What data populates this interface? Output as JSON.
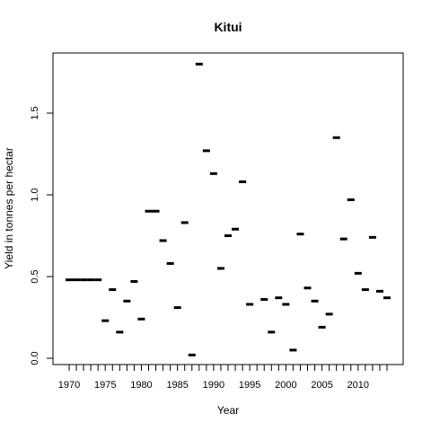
{
  "chart_data": {
    "type": "scatter",
    "title": "Kitui",
    "xlabel": "Year",
    "ylabel": "Yield in tonnes per hectar",
    "xlim": [
      1968.5,
      1015.5
    ],
    "ylim": [
      -0.03,
      1.87
    ],
    "x_ticks": [
      1970,
      1975,
      1980,
      1985,
      1990,
      1995,
      2000,
      2005,
      2010
    ],
    "x_tick_labels": [
      "1970",
      "1975",
      "1980",
      "1985",
      "1990",
      "1995",
      "2000",
      "2005",
      "2010"
    ],
    "y_ticks": [
      0.0,
      0.5,
      1.0,
      1.5
    ],
    "y_tick_labels": [
      "0.0",
      "0.5",
      "1.0",
      "1.5"
    ],
    "marker": "dash",
    "grid": false,
    "points": [
      {
        "x": 1970,
        "y": 0.48
      },
      {
        "x": 1971,
        "y": 0.48
      },
      {
        "x": 1972,
        "y": 0.48
      },
      {
        "x": 1973,
        "y": 0.48
      },
      {
        "x": 1974,
        "y": 0.48
      },
      {
        "x": 1975,
        "y": 0.23
      },
      {
        "x": 1976,
        "y": 0.42
      },
      {
        "x": 1977,
        "y": 0.16
      },
      {
        "x": 1978,
        "y": 0.35
      },
      {
        "x": 1979,
        "y": 0.47
      },
      {
        "x": 1980,
        "y": 0.24
      },
      {
        "x": 1981,
        "y": 0.9
      },
      {
        "x": 1982,
        "y": 0.9
      },
      {
        "x": 1983,
        "y": 0.72
      },
      {
        "x": 1984,
        "y": 0.58
      },
      {
        "x": 1985,
        "y": 0.31
      },
      {
        "x": 1986,
        "y": 0.83
      },
      {
        "x": 1987,
        "y": 0.02
      },
      {
        "x": 1988,
        "y": 1.8
      },
      {
        "x": 1989,
        "y": 1.27
      },
      {
        "x": 1990,
        "y": 1.13
      },
      {
        "x": 1991,
        "y": 0.55
      },
      {
        "x": 1992,
        "y": 0.75
      },
      {
        "x": 1993,
        "y": 0.79
      },
      {
        "x": 1994,
        "y": 1.08
      },
      {
        "x": 1995,
        "y": 0.33
      },
      {
        "x": 1997,
        "y": 0.36
      },
      {
        "x": 1998,
        "y": 0.16
      },
      {
        "x": 1999,
        "y": 0.37
      },
      {
        "x": 2000,
        "y": 0.33
      },
      {
        "x": 2001,
        "y": 0.05
      },
      {
        "x": 2002,
        "y": 0.76
      },
      {
        "x": 2003,
        "y": 0.43
      },
      {
        "x": 2004,
        "y": 0.35
      },
      {
        "x": 2005,
        "y": 0.19
      },
      {
        "x": 2006,
        "y": 0.27
      },
      {
        "x": 2007,
        "y": 1.35
      },
      {
        "x": 2008,
        "y": 0.73
      },
      {
        "x": 2009,
        "y": 0.97
      },
      {
        "x": 2010,
        "y": 0.52
      },
      {
        "x": 2011,
        "y": 0.42
      },
      {
        "x": 2012,
        "y": 0.74
      },
      {
        "x": 2013,
        "y": 0.41
      },
      {
        "x": 2014,
        "y": 0.37
      }
    ]
  }
}
